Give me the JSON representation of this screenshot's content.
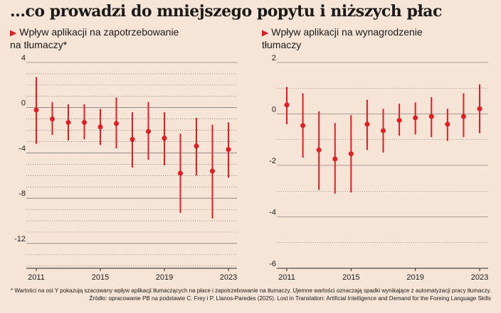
{
  "headline": "...co prowadzi do mniejszego popytu i niższych płac",
  "footnotes": {
    "line1": "* Wartości na osi Y pokazują szacowany wpływ aplikacji tłumaczących na płace i zapotrzebowanie na tłumaczy. Ujemne wartości oznaczają spadki wynikające z automatyzacji pracy tłumaczy.",
    "line2": "Źródło: opracowanie PB na podstawie C. Frey i P. Llanos-Paredes (2025). Lost in Translation: Artificial Intelligence and Demand for the Foreing Language Skills"
  },
  "colors": {
    "marker": "#e01e26",
    "grid": "#555555",
    "background": "#f6e4d6"
  },
  "chart_data": [
    {
      "type": "scatter",
      "error_bars": true,
      "title_line1": "Wpływ aplikacji na zapotrzebowanie",
      "title_line2": "na tłumaczy*",
      "x": [
        2011,
        2012,
        2013,
        2014,
        2015,
        2016,
        2017,
        2018,
        2019,
        2020,
        2021,
        2022,
        2023
      ],
      "y": [
        -0.2,
        -1.0,
        -1.3,
        -1.3,
        -1.7,
        -1.4,
        -2.8,
        -2.1,
        -2.7,
        -5.8,
        -3.4,
        -5.6,
        -3.7
      ],
      "y_low": [
        -3.2,
        -2.4,
        -2.9,
        -2.8,
        -3.3,
        -3.6,
        -5.3,
        -4.6,
        -5.1,
        -9.3,
        -6.0,
        -9.8,
        -6.2
      ],
      "y_high": [
        2.7,
        0.5,
        0.3,
        0.3,
        -0.1,
        0.9,
        -0.4,
        0.5,
        -0.4,
        -2.3,
        -0.9,
        -1.5,
        -1.3
      ],
      "xticks": [
        "2011",
        "2015",
        "2019",
        "2023"
      ],
      "xtick_values": [
        2011,
        2015,
        2019,
        2023
      ],
      "yticks": [
        "4",
        "0",
        "-4",
        "-8",
        "-12"
      ],
      "ytick_values": [
        4,
        0,
        -4,
        -8,
        -12
      ],
      "xlim": [
        2010.7,
        2023.3
      ],
      "ylim": [
        -14.2,
        4
      ],
      "grid": true
    },
    {
      "type": "scatter",
      "error_bars": true,
      "title_line1": "Wpływ aplikacji na wynagrodzenie",
      "title_line2": "tłumaczy",
      "x": [
        2011,
        2012,
        2013,
        2014,
        2015,
        2016,
        2017,
        2018,
        2019,
        2020,
        2021,
        2022,
        2023
      ],
      "y": [
        0.35,
        -0.45,
        -1.4,
        -1.75,
        -1.55,
        -0.4,
        -0.65,
        -0.25,
        -0.15,
        -0.1,
        -0.4,
        -0.1,
        0.2
      ],
      "y_low": [
        -0.4,
        -1.7,
        -2.95,
        -3.1,
        -3.05,
        -1.4,
        -1.5,
        -0.85,
        -0.8,
        -0.9,
        -1.05,
        -0.9,
        -0.75
      ],
      "y_high": [
        1.05,
        0.8,
        0.1,
        -0.35,
        -0.05,
        0.55,
        0.2,
        0.4,
        0.45,
        0.65,
        0.2,
        0.8,
        1.15
      ],
      "xticks": [
        "2011",
        "2015",
        "2019",
        "2023"
      ],
      "xtick_values": [
        2011,
        2015,
        2019,
        2023
      ],
      "yticks": [
        "2",
        "0",
        "-2",
        "-4",
        "-6"
      ],
      "ytick_values": [
        2,
        0,
        -2,
        -4,
        -6
      ],
      "xlim": [
        2010.7,
        2023.3
      ],
      "ylim": [
        -6,
        2
      ],
      "grid": true
    }
  ]
}
